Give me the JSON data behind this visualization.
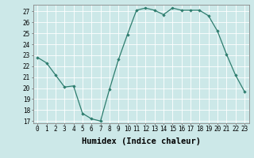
{
  "x": [
    0,
    1,
    2,
    3,
    4,
    5,
    6,
    7,
    8,
    9,
    10,
    11,
    12,
    13,
    14,
    15,
    16,
    17,
    18,
    19,
    20,
    21,
    22,
    23
  ],
  "y": [
    22.8,
    22.3,
    21.2,
    20.1,
    20.2,
    17.7,
    17.2,
    17.0,
    19.9,
    22.6,
    24.9,
    27.1,
    27.3,
    27.1,
    26.7,
    27.3,
    27.1,
    27.1,
    27.1,
    26.6,
    25.2,
    23.1,
    21.2,
    19.7
  ],
  "xlabel": "Humidex (Indice chaleur)",
  "xlim": [
    -0.5,
    23.5
  ],
  "ylim": [
    16.8,
    27.6
  ],
  "yticks": [
    17,
    18,
    19,
    20,
    21,
    22,
    23,
    24,
    25,
    26,
    27
  ],
  "xticks": [
    0,
    1,
    2,
    3,
    4,
    5,
    6,
    7,
    8,
    9,
    10,
    11,
    12,
    13,
    14,
    15,
    16,
    17,
    18,
    19,
    20,
    21,
    22,
    23
  ],
  "line_color": "#2e7d6e",
  "marker": "D",
  "marker_size": 1.8,
  "bg_color": "#cce8e8",
  "grid_color": "#ffffff",
  "tick_fontsize": 5.5,
  "xlabel_fontsize": 7.5
}
